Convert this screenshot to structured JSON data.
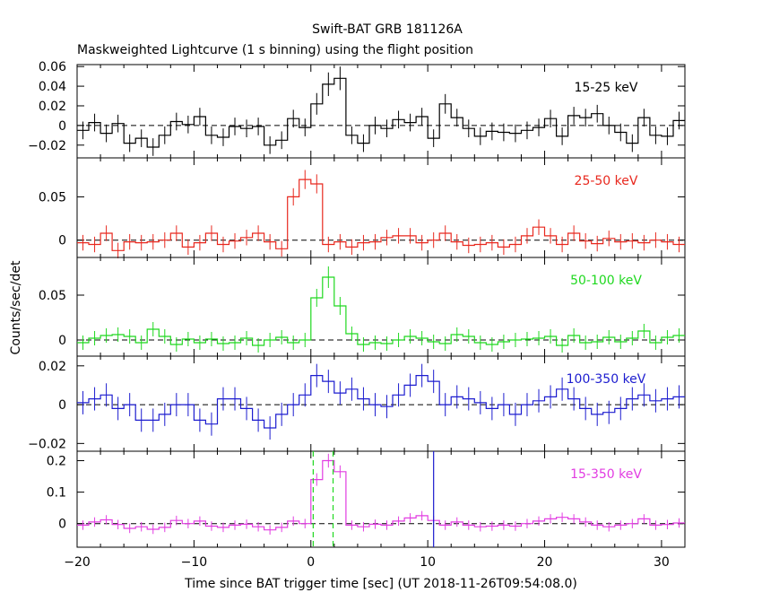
{
  "title": "Swift-BAT GRB 181126A",
  "subtitle": "Maskweighted Lightcurve (1 s binning) using the flight position",
  "ylabel": "Counts/sec/det",
  "xlabel": "Time since BAT trigger time [sec] (UT 2018-11-26T09:54:08.0)",
  "colors": {
    "black": "#000000",
    "red": "#e8281e",
    "green": "#1fd81f",
    "blue": "#1c1ccf",
    "magenta": "#e23ce2"
  },
  "chart_data": [
    {
      "type": "line",
      "band": "15-25 keV",
      "color": "#000000",
      "xlim": [
        -20,
        32
      ],
      "ylim": [
        -0.033,
        0.062
      ],
      "ticks": [
        -0.02,
        0,
        0.02,
        0.04,
        0.06
      ],
      "tick_labels": [
        "−0.02",
        "0",
        "0.02",
        "0.04",
        "0.06"
      ],
      "x": [
        -20,
        -19,
        -18,
        -17,
        -16,
        -15,
        -14,
        -13,
        -12,
        -11,
        -10,
        -9,
        -8,
        -7,
        -6,
        -5,
        -4,
        -3,
        -2,
        -1,
        0,
        1,
        2,
        3,
        4,
        5,
        6,
        7,
        8,
        9,
        10,
        11,
        12,
        13,
        14,
        15,
        16,
        17,
        18,
        19,
        20,
        21,
        22,
        23,
        24,
        25,
        26,
        27,
        28,
        29,
        30,
        31
      ],
      "y": [
        -0.005,
        0.003,
        -0.008,
        0.002,
        -0.018,
        -0.013,
        -0.022,
        -0.01,
        0.004,
        0.001,
        0.009,
        -0.01,
        -0.012,
        -0.001,
        -0.003,
        -0.001,
        -0.02,
        -0.015,
        0.007,
        -0.002,
        0.022,
        0.042,
        0.048,
        -0.01,
        -0.018,
        0.0,
        -0.003,
        0.006,
        0.003,
        0.009,
        -0.013,
        0.022,
        0.008,
        -0.003,
        -0.011,
        -0.006,
        -0.007,
        -0.008,
        -0.005,
        -0.002,
        0.007,
        -0.011,
        0.01,
        0.008,
        0.012,
        0.0,
        -0.007,
        -0.018,
        0.008,
        -0.01,
        -0.011,
        0.005
      ],
      "err": [
        0.009,
        0.009,
        0.009,
        0.009,
        0.009,
        0.009,
        0.009,
        0.009,
        0.009,
        0.009,
        0.009,
        0.009,
        0.009,
        0.009,
        0.009,
        0.009,
        0.009,
        0.009,
        0.009,
        0.009,
        0.011,
        0.012,
        0.012,
        0.009,
        0.009,
        0.009,
        0.009,
        0.009,
        0.009,
        0.009,
        0.009,
        0.01,
        0.009,
        0.009,
        0.009,
        0.009,
        0.009,
        0.009,
        0.009,
        0.009,
        0.009,
        0.009,
        0.009,
        0.009,
        0.009,
        0.009,
        0.009,
        0.009,
        0.009,
        0.009,
        0.009,
        0.009
      ]
    },
    {
      "type": "line",
      "band": "25-50 keV",
      "color": "#e8281e",
      "xlim": [
        -20,
        32
      ],
      "ylim": [
        -0.02,
        0.095
      ],
      "ticks": [
        0,
        0.05
      ],
      "tick_labels": [
        "0",
        "0.05"
      ],
      "x": [
        -20,
        -19,
        -18,
        -17,
        -16,
        -15,
        -14,
        -13,
        -12,
        -11,
        -10,
        -9,
        -8,
        -7,
        -6,
        -5,
        -4,
        -3,
        -2,
        -1,
        0,
        1,
        2,
        3,
        4,
        5,
        6,
        7,
        8,
        9,
        10,
        11,
        12,
        13,
        14,
        15,
        16,
        17,
        18,
        19,
        20,
        21,
        22,
        23,
        24,
        25,
        26,
        27,
        28,
        29,
        30,
        31
      ],
      "y": [
        -0.003,
        -0.005,
        0.008,
        -0.012,
        -0.002,
        -0.003,
        -0.002,
        0.0,
        0.008,
        -0.008,
        -0.003,
        0.008,
        -0.005,
        -0.001,
        0.003,
        0.008,
        -0.002,
        -0.01,
        0.05,
        0.07,
        0.065,
        -0.005,
        -0.002,
        -0.008,
        -0.003,
        -0.002,
        0.003,
        0.005,
        0.005,
        -0.003,
        0.0,
        0.008,
        -0.002,
        -0.006,
        -0.005,
        -0.003,
        -0.008,
        -0.005,
        0.005,
        0.015,
        0.005,
        -0.005,
        0.008,
        -0.001,
        -0.004,
        0.002,
        -0.002,
        -0.001,
        -0.003,
        0.0,
        -0.002,
        -0.005
      ],
      "err": [
        0.009,
        0.009,
        0.009,
        0.009,
        0.009,
        0.009,
        0.009,
        0.009,
        0.009,
        0.009,
        0.009,
        0.009,
        0.009,
        0.009,
        0.009,
        0.009,
        0.009,
        0.009,
        0.01,
        0.011,
        0.011,
        0.009,
        0.009,
        0.009,
        0.009,
        0.009,
        0.009,
        0.009,
        0.009,
        0.009,
        0.009,
        0.009,
        0.009,
        0.009,
        0.009,
        0.009,
        0.009,
        0.009,
        0.009,
        0.009,
        0.009,
        0.009,
        0.009,
        0.009,
        0.009,
        0.009,
        0.009,
        0.009,
        0.009,
        0.009,
        0.009,
        0.009
      ]
    },
    {
      "type": "line",
      "band": "50-100 keV",
      "color": "#1fd81f",
      "xlim": [
        -20,
        32
      ],
      "ylim": [
        -0.018,
        0.092
      ],
      "ticks": [
        0,
        0.05
      ],
      "tick_labels": [
        "0",
        "0.05"
      ],
      "x": [
        -20,
        -19,
        -18,
        -17,
        -16,
        -15,
        -14,
        -13,
        -12,
        -11,
        -10,
        -9,
        -8,
        -7,
        -6,
        -5,
        -4,
        -3,
        -2,
        -1,
        0,
        1,
        2,
        3,
        4,
        5,
        6,
        7,
        8,
        9,
        10,
        11,
        12,
        13,
        14,
        15,
        16,
        17,
        18,
        19,
        20,
        21,
        22,
        23,
        24,
        25,
        26,
        27,
        28,
        29,
        30,
        31
      ],
      "y": [
        -0.003,
        0.002,
        0.005,
        0.006,
        0.004,
        -0.003,
        0.012,
        0.004,
        -0.005,
        0.001,
        -0.003,
        0.001,
        -0.004,
        -0.003,
        0.002,
        -0.006,
        0.0,
        0.003,
        -0.003,
        0.0,
        0.047,
        0.07,
        0.038,
        0.007,
        -0.005,
        -0.003,
        -0.004,
        0.0,
        0.004,
        0.002,
        -0.002,
        -0.004,
        0.006,
        0.004,
        -0.003,
        -0.005,
        -0.002,
        0.0,
        0.001,
        0.002,
        0.004,
        -0.006,
        0.005,
        -0.003,
        -0.002,
        0.003,
        -0.002,
        0.002,
        0.01,
        -0.003,
        0.003,
        0.005
      ],
      "err": [
        0.008,
        0.008,
        0.008,
        0.008,
        0.008,
        0.008,
        0.008,
        0.008,
        0.008,
        0.008,
        0.008,
        0.008,
        0.008,
        0.008,
        0.008,
        0.008,
        0.008,
        0.008,
        0.008,
        0.008,
        0.01,
        0.012,
        0.01,
        0.008,
        0.008,
        0.008,
        0.008,
        0.008,
        0.008,
        0.008,
        0.008,
        0.008,
        0.008,
        0.008,
        0.008,
        0.008,
        0.008,
        0.008,
        0.008,
        0.008,
        0.008,
        0.008,
        0.008,
        0.008,
        0.008,
        0.008,
        0.008,
        0.008,
        0.008,
        0.008,
        0.008,
        0.008
      ]
    },
    {
      "type": "line",
      "band": "100-350 keV",
      "color": "#1c1ccf",
      "xlim": [
        -20,
        32
      ],
      "ylim": [
        -0.024,
        0.025
      ],
      "ticks": [
        -0.02,
        0,
        0.02
      ],
      "tick_labels": [
        "−0.02",
        "0",
        "0.02"
      ],
      "x": [
        -20,
        -19,
        -18,
        -17,
        -16,
        -15,
        -14,
        -13,
        -12,
        -11,
        -10,
        -9,
        -8,
        -7,
        -6,
        -5,
        -4,
        -3,
        -2,
        -1,
        0,
        1,
        2,
        3,
        4,
        5,
        6,
        7,
        8,
        9,
        10,
        11,
        12,
        13,
        14,
        15,
        16,
        17,
        18,
        19,
        20,
        21,
        22,
        23,
        24,
        25,
        26,
        27,
        28,
        29,
        30,
        31
      ],
      "y": [
        0.001,
        0.003,
        0.005,
        -0.002,
        0.0,
        -0.008,
        -0.008,
        -0.005,
        0.0,
        0.0,
        -0.008,
        -0.01,
        0.003,
        0.003,
        -0.002,
        -0.008,
        -0.012,
        -0.005,
        0.0,
        0.005,
        0.015,
        0.012,
        0.006,
        0.008,
        0.003,
        0.0,
        -0.001,
        0.005,
        0.01,
        0.015,
        0.012,
        0.0,
        0.004,
        0.003,
        0.001,
        -0.002,
        0.0,
        -0.005,
        0.0,
        0.002,
        0.004,
        0.008,
        0.003,
        -0.002,
        -0.005,
        -0.004,
        -0.002,
        0.003,
        0.005,
        0.002,
        0.003,
        0.004
      ],
      "err": [
        0.006,
        0.006,
        0.006,
        0.006,
        0.006,
        0.006,
        0.006,
        0.006,
        0.006,
        0.006,
        0.006,
        0.006,
        0.006,
        0.006,
        0.006,
        0.006,
        0.006,
        0.006,
        0.006,
        0.006,
        0.006,
        0.006,
        0.006,
        0.006,
        0.006,
        0.006,
        0.006,
        0.006,
        0.006,
        0.006,
        0.006,
        0.006,
        0.006,
        0.006,
        0.006,
        0.006,
        0.006,
        0.006,
        0.006,
        0.006,
        0.006,
        0.006,
        0.006,
        0.006,
        0.006,
        0.006,
        0.006,
        0.006,
        0.006,
        0.006,
        0.006,
        0.006
      ]
    },
    {
      "type": "line",
      "band": "15-350 keV",
      "color": "#e23ce2",
      "xlim": [
        -20,
        32
      ],
      "ylim": [
        -0.075,
        0.23
      ],
      "ticks": [
        0,
        0.1,
        0.2
      ],
      "tick_labels": [
        "0",
        "0.1",
        "0.2"
      ],
      "x": [
        -20,
        -19,
        -18,
        -17,
        -16,
        -15,
        -14,
        -13,
        -12,
        -11,
        -10,
        -9,
        -8,
        -7,
        -6,
        -5,
        -4,
        -3,
        -2,
        -1,
        0,
        1,
        2,
        3,
        4,
        5,
        6,
        7,
        8,
        9,
        10,
        11,
        12,
        13,
        14,
        15,
        16,
        17,
        18,
        19,
        20,
        21,
        22,
        23,
        24,
        25,
        26,
        27,
        28,
        29,
        30,
        31
      ],
      "y": [
        -0.005,
        0.005,
        0.012,
        -0.003,
        -0.015,
        -0.01,
        -0.018,
        -0.012,
        0.01,
        0.0,
        0.008,
        -0.008,
        -0.012,
        -0.005,
        -0.002,
        -0.01,
        -0.02,
        -0.012,
        0.008,
        0.0,
        0.14,
        0.2,
        0.165,
        -0.005,
        -0.01,
        -0.002,
        -0.005,
        0.008,
        0.018,
        0.025,
        0.01,
        -0.005,
        0.005,
        -0.005,
        -0.01,
        -0.008,
        -0.005,
        -0.008,
        0.0,
        0.008,
        0.015,
        0.02,
        0.015,
        0.005,
        -0.005,
        -0.01,
        -0.005,
        0.0,
        0.015,
        -0.005,
        -0.003,
        0.002
      ],
      "err": [
        0.015,
        0.015,
        0.015,
        0.015,
        0.015,
        0.015,
        0.015,
        0.015,
        0.015,
        0.015,
        0.015,
        0.015,
        0.015,
        0.015,
        0.015,
        0.015,
        0.015,
        0.015,
        0.015,
        0.015,
        0.02,
        0.022,
        0.02,
        0.015,
        0.015,
        0.015,
        0.015,
        0.015,
        0.015,
        0.015,
        0.015,
        0.015,
        0.015,
        0.015,
        0.015,
        0.015,
        0.015,
        0.015,
        0.015,
        0.015,
        0.015,
        0.015,
        0.015,
        0.015,
        0.015,
        0.015,
        0.015,
        0.015,
        0.015,
        0.015,
        0.015,
        0.015
      ],
      "markers": [
        {
          "x": 0.2,
          "color": "#1fd81f",
          "style": "dashed"
        },
        {
          "x": 1.9,
          "color": "#1fd81f",
          "style": "dashed"
        },
        {
          "x": 10.5,
          "color": "#1c1ccf",
          "style": "solid"
        }
      ]
    }
  ],
  "x_axis": {
    "ticks": [
      -20,
      -10,
      0,
      10,
      20,
      30
    ],
    "tick_labels": [
      "−20",
      "−10",
      "0",
      "10",
      "20",
      "30"
    ]
  }
}
